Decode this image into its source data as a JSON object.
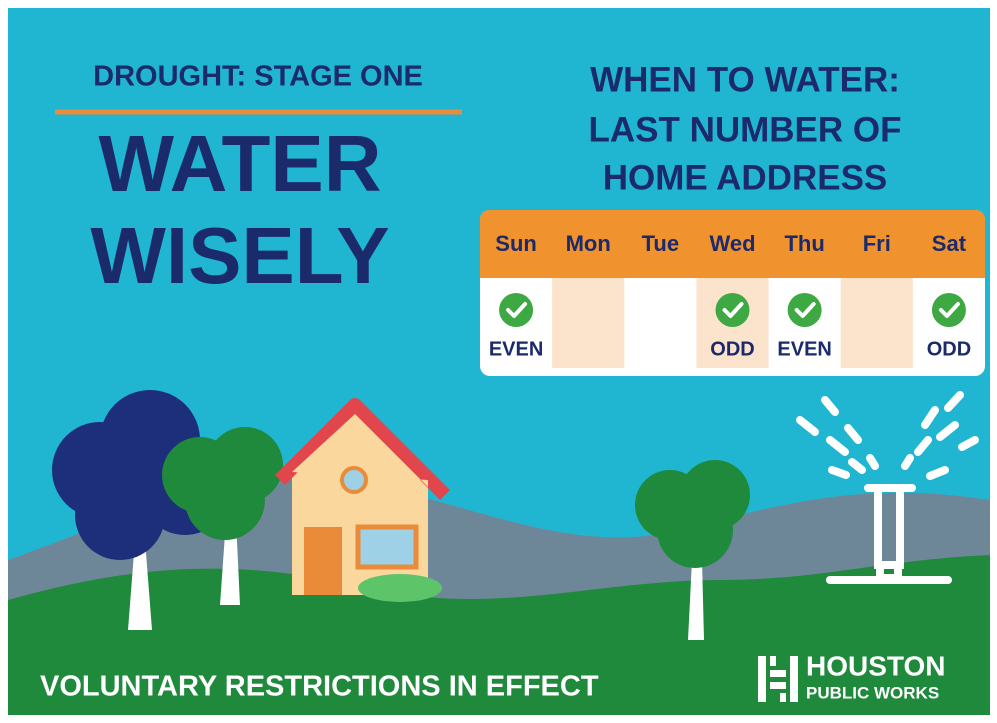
{
  "header": {
    "stage": "DROUGHT: STAGE ONE",
    "title": [
      "WATER",
      "WISELY"
    ]
  },
  "schedule": {
    "heading": [
      "WHEN TO WATER:",
      "LAST NUMBER OF",
      "HOME ADDRESS"
    ],
    "days": [
      {
        "day": "Sun",
        "label": "EVEN"
      },
      {
        "day": "Mon"
      },
      {
        "day": "Tue"
      },
      {
        "day": "Wed",
        "label": "ODD"
      },
      {
        "day": "Thu",
        "label": "EVEN"
      },
      {
        "day": "Fri"
      },
      {
        "day": "Sat",
        "label": "ODD"
      }
    ]
  },
  "footer": {
    "notice": "VOLUNTARY RESTRICTIONS IN EFFECT",
    "logo": [
      "HOUSTON",
      "PUBLIC WORKS"
    ]
  }
}
